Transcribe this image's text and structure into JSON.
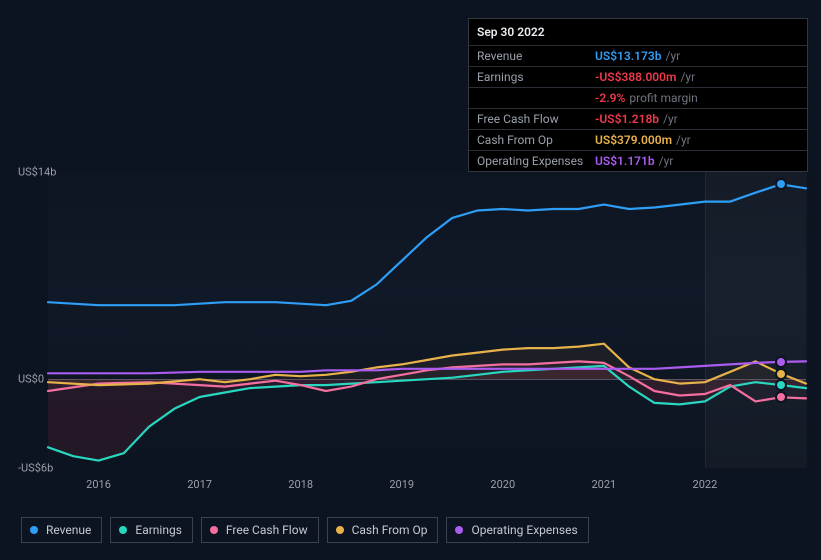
{
  "tooltip": {
    "date": "Sep 30 2022",
    "rows": [
      {
        "label": "Revenue",
        "value": "US$13.173b",
        "suffix": "/yr",
        "color": "#2e9ef7"
      },
      {
        "label": "Earnings",
        "value": "-US$388.000m",
        "suffix": "/yr",
        "color": "#ed394b"
      },
      {
        "label": "",
        "value": "-2.9%",
        "suffix": "profit margin",
        "color": "#ed394b"
      },
      {
        "label": "Free Cash Flow",
        "value": "-US$1.218b",
        "suffix": "/yr",
        "color": "#ed394b"
      },
      {
        "label": "Cash From Op",
        "value": "US$379.000m",
        "suffix": "/yr",
        "color": "#e8b24a"
      },
      {
        "label": "Operating Expenses",
        "value": "US$1.171b",
        "suffix": "/yr",
        "color": "#ab5cf0"
      }
    ]
  },
  "chart": {
    "x_start_year": 2015.5,
    "x_end_year": 2023.0,
    "y_min": -6,
    "y_max": 14,
    "ylabels": [
      {
        "text": "US$14b",
        "value": 14
      },
      {
        "text": "US$0",
        "value": 0
      },
      {
        "text": "-US$6b",
        "value": -6
      }
    ],
    "xlabels": [
      {
        "text": "2016",
        "value": 2016
      },
      {
        "text": "2017",
        "value": 2017
      },
      {
        "text": "2018",
        "value": 2018
      },
      {
        "text": "2019",
        "value": 2019
      },
      {
        "text": "2020",
        "value": 2020
      },
      {
        "text": "2021",
        "value": 2021
      },
      {
        "text": "2022",
        "value": 2022
      }
    ],
    "marker_year": 2022.75,
    "band_start_year": 2022.0,
    "series": [
      {
        "name": "Earnings",
        "color": "#28d7c0",
        "fill": "rgba(237,57,75,0.10)",
        "points": [
          [
            2015.5,
            -4.6
          ],
          [
            2015.75,
            -5.2
          ],
          [
            2016.0,
            -5.5
          ],
          [
            2016.25,
            -5.0
          ],
          [
            2016.5,
            -3.2
          ],
          [
            2016.75,
            -2.0
          ],
          [
            2017.0,
            -1.2
          ],
          [
            2017.25,
            -0.9
          ],
          [
            2017.5,
            -0.6
          ],
          [
            2017.75,
            -0.5
          ],
          [
            2018.0,
            -0.4
          ],
          [
            2018.25,
            -0.4
          ],
          [
            2018.5,
            -0.3
          ],
          [
            2018.75,
            -0.2
          ],
          [
            2019.0,
            -0.1
          ],
          [
            2019.25,
            0.0
          ],
          [
            2019.5,
            0.1
          ],
          [
            2019.75,
            0.3
          ],
          [
            2020.0,
            0.5
          ],
          [
            2020.25,
            0.6
          ],
          [
            2020.5,
            0.7
          ],
          [
            2020.75,
            0.8
          ],
          [
            2021.0,
            0.9
          ],
          [
            2021.25,
            -0.5
          ],
          [
            2021.5,
            -1.6
          ],
          [
            2021.75,
            -1.7
          ],
          [
            2022.0,
            -1.5
          ],
          [
            2022.25,
            -0.5
          ],
          [
            2022.5,
            -0.2
          ],
          [
            2022.75,
            -0.39
          ],
          [
            2023.0,
            -0.6
          ]
        ]
      },
      {
        "name": "Free Cash Flow",
        "color": "#f36fa0",
        "fill": "rgba(243,111,160,0.05)",
        "points": [
          [
            2015.5,
            -0.8
          ],
          [
            2016.0,
            -0.3
          ],
          [
            2016.5,
            -0.2
          ],
          [
            2017.0,
            -0.4
          ],
          [
            2017.25,
            -0.5
          ],
          [
            2017.5,
            -0.3
          ],
          [
            2017.75,
            -0.1
          ],
          [
            2018.0,
            -0.4
          ],
          [
            2018.25,
            -0.8
          ],
          [
            2018.5,
            -0.5
          ],
          [
            2018.75,
            0.0
          ],
          [
            2019.0,
            0.3
          ],
          [
            2019.25,
            0.6
          ],
          [
            2019.5,
            0.8
          ],
          [
            2019.75,
            0.9
          ],
          [
            2020.0,
            1.0
          ],
          [
            2020.25,
            1.0
          ],
          [
            2020.5,
            1.1
          ],
          [
            2020.75,
            1.2
          ],
          [
            2021.0,
            1.1
          ],
          [
            2021.25,
            0.2
          ],
          [
            2021.5,
            -0.8
          ],
          [
            2021.75,
            -1.1
          ],
          [
            2022.0,
            -1.0
          ],
          [
            2022.25,
            -0.4
          ],
          [
            2022.5,
            -1.5
          ],
          [
            2022.75,
            -1.22
          ],
          [
            2023.0,
            -1.3
          ]
        ]
      },
      {
        "name": "Cash From Op",
        "color": "#e8b24a",
        "fill": "rgba(232,178,74,0.06)",
        "points": [
          [
            2015.5,
            -0.2
          ],
          [
            2016.0,
            -0.4
          ],
          [
            2016.5,
            -0.3
          ],
          [
            2017.0,
            0.0
          ],
          [
            2017.25,
            -0.2
          ],
          [
            2017.5,
            0.0
          ],
          [
            2017.75,
            0.3
          ],
          [
            2018.0,
            0.2
          ],
          [
            2018.25,
            0.3
          ],
          [
            2018.5,
            0.5
          ],
          [
            2018.75,
            0.8
          ],
          [
            2019.0,
            1.0
          ],
          [
            2019.25,
            1.3
          ],
          [
            2019.5,
            1.6
          ],
          [
            2019.75,
            1.8
          ],
          [
            2020.0,
            2.0
          ],
          [
            2020.25,
            2.1
          ],
          [
            2020.5,
            2.1
          ],
          [
            2020.75,
            2.2
          ],
          [
            2021.0,
            2.4
          ],
          [
            2021.25,
            0.8
          ],
          [
            2021.5,
            0.0
          ],
          [
            2021.75,
            -0.3
          ],
          [
            2022.0,
            -0.2
          ],
          [
            2022.25,
            0.5
          ],
          [
            2022.5,
            1.2
          ],
          [
            2022.75,
            0.38
          ],
          [
            2023.0,
            -0.3
          ]
        ]
      },
      {
        "name": "Operating Expenses",
        "color": "#ab5cf0",
        "fill": "none",
        "points": [
          [
            2015.5,
            0.4
          ],
          [
            2016.0,
            0.4
          ],
          [
            2016.5,
            0.4
          ],
          [
            2017.0,
            0.5
          ],
          [
            2017.5,
            0.5
          ],
          [
            2018.0,
            0.5
          ],
          [
            2018.25,
            0.6
          ],
          [
            2018.5,
            0.6
          ],
          [
            2018.75,
            0.6
          ],
          [
            2019.0,
            0.7
          ],
          [
            2019.25,
            0.7
          ],
          [
            2019.5,
            0.7
          ],
          [
            2019.75,
            0.7
          ],
          [
            2020.0,
            0.7
          ],
          [
            2020.25,
            0.7
          ],
          [
            2020.5,
            0.7
          ],
          [
            2020.75,
            0.7
          ],
          [
            2021.0,
            0.7
          ],
          [
            2021.25,
            0.7
          ],
          [
            2021.5,
            0.7
          ],
          [
            2021.75,
            0.8
          ],
          [
            2022.0,
            0.9
          ],
          [
            2022.25,
            1.0
          ],
          [
            2022.5,
            1.1
          ],
          [
            2022.75,
            1.17
          ],
          [
            2023.0,
            1.2
          ]
        ]
      },
      {
        "name": "Revenue",
        "color": "#2e9ef7",
        "fill": "none",
        "points": [
          [
            2015.5,
            5.2
          ],
          [
            2015.75,
            5.1
          ],
          [
            2016.0,
            5.0
          ],
          [
            2016.25,
            5.0
          ],
          [
            2016.5,
            5.0
          ],
          [
            2016.75,
            5.0
          ],
          [
            2017.0,
            5.1
          ],
          [
            2017.25,
            5.2
          ],
          [
            2017.5,
            5.2
          ],
          [
            2017.75,
            5.2
          ],
          [
            2018.0,
            5.1
          ],
          [
            2018.25,
            5.0
          ],
          [
            2018.5,
            5.3
          ],
          [
            2018.75,
            6.4
          ],
          [
            2019.0,
            8.0
          ],
          [
            2019.25,
            9.6
          ],
          [
            2019.5,
            10.9
          ],
          [
            2019.75,
            11.4
          ],
          [
            2020.0,
            11.5
          ],
          [
            2020.25,
            11.4
          ],
          [
            2020.5,
            11.5
          ],
          [
            2020.75,
            11.5
          ],
          [
            2021.0,
            11.8
          ],
          [
            2021.25,
            11.5
          ],
          [
            2021.5,
            11.6
          ],
          [
            2021.75,
            11.8
          ],
          [
            2022.0,
            12.0
          ],
          [
            2022.25,
            12.0
          ],
          [
            2022.5,
            12.6
          ],
          [
            2022.75,
            13.17
          ],
          [
            2023.0,
            12.9
          ]
        ]
      }
    ]
  },
  "legend": [
    {
      "label": "Revenue",
      "color": "#2e9ef7"
    },
    {
      "label": "Earnings",
      "color": "#28d7c0"
    },
    {
      "label": "Free Cash Flow",
      "color": "#f36fa0"
    },
    {
      "label": "Cash From Op",
      "color": "#e8b24a"
    },
    {
      "label": "Operating Expenses",
      "color": "#ab5cf0"
    }
  ]
}
